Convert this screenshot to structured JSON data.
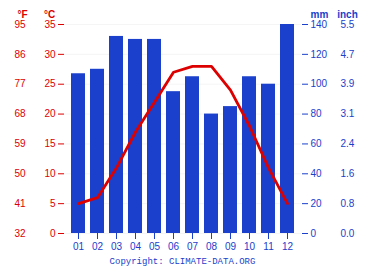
{
  "chart_data": {
    "type": "bar",
    "categories": [
      "01",
      "02",
      "03",
      "04",
      "05",
      "06",
      "07",
      "08",
      "09",
      "10",
      "11",
      "12"
    ],
    "series": [
      {
        "type": "bar",
        "axis": "y2",
        "color": "#1a40cc",
        "values": [
          107,
          110,
          132,
          130,
          130,
          95,
          105,
          80,
          85,
          105,
          100,
          140
        ]
      },
      {
        "type": "line",
        "color": "#dd0000",
        "values": [
          5.0,
          6.0,
          11.0,
          17.0,
          22.0,
          27.0,
          28.0,
          28.0,
          24.0,
          18.0,
          11.0,
          5.0
        ]
      }
    ],
    "ylabel": "°C",
    "ylim": [
      0,
      35
    ],
    "yticks": [
      0,
      5,
      10,
      15,
      20,
      25,
      30,
      35
    ],
    "y3label": "°F",
    "y3ticks": [
      {
        "value": 0,
        "label": "32"
      },
      {
        "value": 5,
        "label": "41"
      },
      {
        "value": 10,
        "label": "50"
      },
      {
        "value": 15,
        "label": "59"
      },
      {
        "value": 20,
        "label": "68"
      },
      {
        "value": 25,
        "label": "77"
      },
      {
        "value": 30,
        "label": "86"
      },
      {
        "value": 35,
        "label": "95"
      }
    ],
    "y2label": "mm",
    "y2lim": [
      0,
      140
    ],
    "y2ticks": [
      0,
      20,
      40,
      60,
      80,
      100,
      120,
      140
    ],
    "y4label": "inch",
    "y4ticks": [
      {
        "value": 0,
        "label": "0.0"
      },
      {
        "value": 20,
        "label": "0.8"
      },
      {
        "value": 40,
        "label": "1.6"
      },
      {
        "value": 60,
        "label": "2.4"
      },
      {
        "value": 80,
        "label": "3.1"
      },
      {
        "value": 100,
        "label": "3.9"
      },
      {
        "value": 120,
        "label": "4.7"
      },
      {
        "value": 140,
        "label": "5.5"
      }
    ],
    "grid": true,
    "caption": "Copyright: CLIMATE-DATA.ORG"
  }
}
